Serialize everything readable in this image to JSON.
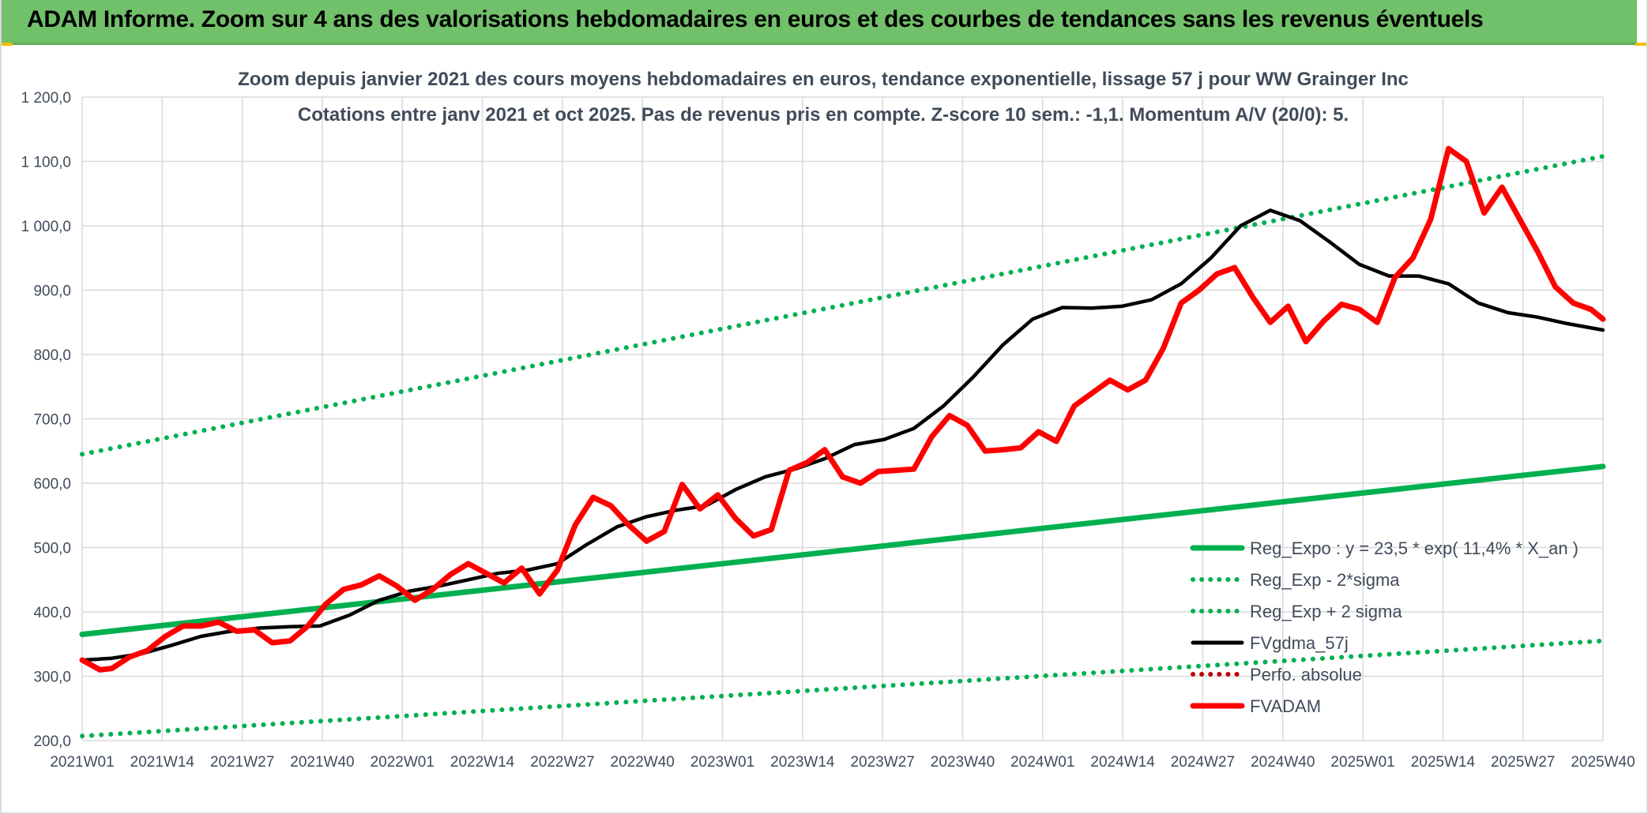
{
  "banner": {
    "title": "ADAM Informe. Zoom sur 4 ans des valorisations hebdomadaires en euros et des courbes de tendances sans les revenus éventuels",
    "color": "#71c06a"
  },
  "chart_data": {
    "type": "line",
    "title": "Zoom depuis janvier 2021 des cours moyens hebdomadaires en euros, tendance exponentielle, lissage 57 j pour WW Grainger Inc",
    "subtitle": "Cotations entre janv 2021 et oct 2025. Pas de revenus pris en compte. Z-score 10 sem.: -1,1. Momentum A/V (20/0): 5.",
    "xlabel": "",
    "ylabel": "",
    "ylim": [
      200,
      1200
    ],
    "yticks": [
      "200,0",
      "300,0",
      "400,0",
      "500,0",
      "600,0",
      "700,0",
      "800,0",
      "900,0",
      "1 000,0",
      "1 100,0",
      "1 200,0"
    ],
    "xticks": [
      "2021W01",
      "2021W14",
      "2021W27",
      "2021W40",
      "2022W01",
      "2022W14",
      "2022W27",
      "2022W40",
      "2023W01",
      "2023W14",
      "2023W27",
      "2023W40",
      "2024W01",
      "2024W14",
      "2024W27",
      "2024W40",
      "2025W01",
      "2025W14",
      "2025W27",
      "2025W40"
    ],
    "grid": true,
    "legend_position": "bottom-right",
    "series": [
      {
        "name": "Reg_Expo : y = 23,5 * exp( 11,4% *  X_an )",
        "color": "#00b050",
        "style": "solid",
        "x": [
          0,
          256
        ],
        "y": [
          365,
          626
        ]
      },
      {
        "name": "Reg_Exp - 2*sigma",
        "color": "#00b050",
        "style": "dotted",
        "x": [
          0,
          256
        ],
        "y": [
          207,
          355
        ]
      },
      {
        "name": "Reg_Exp + 2 sigma",
        "color": "#00b050",
        "style": "dotted",
        "x": [
          0,
          256
        ],
        "y": [
          645,
          1108
        ]
      },
      {
        "name": "FVgdma_57j",
        "color": "#000000",
        "style": "solid",
        "x": [
          0,
          5,
          10,
          15,
          20,
          25,
          30,
          35,
          40,
          45,
          50,
          55,
          60,
          65,
          70,
          75,
          80,
          85,
          90,
          95,
          100,
          105,
          110,
          115,
          120,
          125,
          130,
          135,
          140,
          145,
          150,
          155,
          160,
          165,
          170,
          175,
          180,
          185,
          190,
          195,
          200,
          205,
          210,
          215,
          220,
          225,
          230,
          235,
          240,
          245,
          250,
          256
        ],
        "y": [
          325,
          328,
          335,
          348,
          362,
          370,
          375,
          377,
          378,
          395,
          418,
          432,
          440,
          450,
          460,
          465,
          475,
          505,
          532,
          548,
          558,
          565,
          590,
          610,
          622,
          638,
          660,
          668,
          685,
          720,
          765,
          815,
          855,
          873,
          872,
          875,
          885,
          910,
          950,
          1000,
          1024,
          1008,
          975,
          940,
          922,
          922,
          910,
          880,
          865,
          858,
          848,
          838
        ]
      },
      {
        "name": "Perfo. absolue",
        "color": "#c00000",
        "style": "dotted",
        "x": [],
        "y": []
      },
      {
        "name": "FVADAM",
        "color": "#ff0000",
        "style": "solid",
        "x": [
          0,
          3,
          5,
          8,
          11,
          14,
          17,
          20,
          23,
          26,
          29,
          32,
          35,
          38,
          41,
          44,
          47,
          50,
          53,
          56,
          59,
          62,
          65,
          68,
          71,
          74,
          77,
          80,
          83,
          86,
          89,
          92,
          95,
          98,
          101,
          104,
          107,
          110,
          113,
          116,
          119,
          122,
          125,
          128,
          131,
          134,
          137,
          140,
          143,
          146,
          149,
          152,
          155,
          158,
          161,
          164,
          167,
          170,
          173,
          176,
          179,
          182,
          185,
          188,
          191,
          194,
          197,
          200,
          203,
          206,
          209,
          212,
          215,
          218,
          221,
          224,
          227,
          230,
          233,
          236,
          239,
          242,
          245,
          248,
          251,
          254,
          256
        ],
        "y": [
          325,
          310,
          312,
          330,
          340,
          362,
          378,
          378,
          384,
          370,
          372,
          352,
          355,
          378,
          412,
          435,
          442,
          456,
          440,
          418,
          435,
          458,
          475,
          460,
          445,
          468,
          428,
          465,
          535,
          578,
          565,
          535,
          510,
          525,
          598,
          560,
          582,
          545,
          518,
          528,
          620,
          632,
          652,
          610,
          600,
          618,
          620,
          622,
          672,
          705,
          690,
          650,
          652,
          655,
          680,
          665,
          720,
          740,
          760,
          745,
          760,
          810,
          880,
          900,
          925,
          935,
          890,
          850,
          875,
          820,
          852,
          878,
          870,
          850,
          920,
          950,
          1010,
          1120,
          1100,
          1020,
          1060,
          1010,
          960,
          905,
          880,
          870,
          855
        ]
      }
    ]
  }
}
